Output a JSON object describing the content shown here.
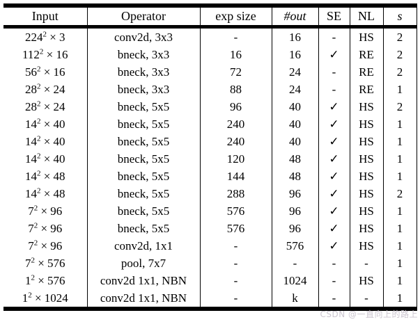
{
  "table": {
    "columns": [
      {
        "key": "input",
        "label": "Input",
        "italic": false
      },
      {
        "key": "operator",
        "label": "Operator",
        "italic": false
      },
      {
        "key": "exp-size",
        "label": "exp size",
        "italic": false
      },
      {
        "key": "out",
        "label": "#out",
        "italic": true
      },
      {
        "key": "se",
        "label": "SE",
        "italic": false
      },
      {
        "key": "nl",
        "label": "NL",
        "italic": false
      },
      {
        "key": "s",
        "label": "s",
        "italic": true
      }
    ],
    "rows": [
      [
        "224^2 × 3",
        "conv2d, 3x3",
        "-",
        "16",
        "-",
        "HS",
        "2"
      ],
      [
        "112^2 × 16",
        "bneck, 3x3",
        "16",
        "16",
        "✓",
        "RE",
        "2"
      ],
      [
        "56^2 × 16",
        "bneck, 3x3",
        "72",
        "24",
        "-",
        "RE",
        "2"
      ],
      [
        "28^2 × 24",
        "bneck, 3x3",
        "88",
        "24",
        "-",
        "RE",
        "1"
      ],
      [
        "28^2 × 24",
        "bneck, 5x5",
        "96",
        "40",
        "✓",
        "HS",
        "2"
      ],
      [
        "14^2 × 40",
        "bneck, 5x5",
        "240",
        "40",
        "✓",
        "HS",
        "1"
      ],
      [
        "14^2 × 40",
        "bneck, 5x5",
        "240",
        "40",
        "✓",
        "HS",
        "1"
      ],
      [
        "14^2 × 40",
        "bneck, 5x5",
        "120",
        "48",
        "✓",
        "HS",
        "1"
      ],
      [
        "14^2 × 48",
        "bneck, 5x5",
        "144",
        "48",
        "✓",
        "HS",
        "1"
      ],
      [
        "14^2 × 48",
        "bneck, 5x5",
        "288",
        "96",
        "✓",
        "HS",
        "2"
      ],
      [
        "7^2 × 96",
        "bneck, 5x5",
        "576",
        "96",
        "✓",
        "HS",
        "1"
      ],
      [
        "7^2 × 96",
        "bneck, 5x5",
        "576",
        "96",
        "✓",
        "HS",
        "1"
      ],
      [
        "7^2 × 96",
        "conv2d, 1x1",
        "-",
        "576",
        "✓",
        "HS",
        "1"
      ],
      [
        "7^2 × 576",
        "pool, 7x7",
        "-",
        "-",
        "-",
        "-",
        "1"
      ],
      [
        "1^2 × 576",
        "conv2d 1x1, NBN",
        "-",
        "1024",
        "-",
        "HS",
        "1"
      ],
      [
        "1^2 × 1024",
        "conv2d 1x1, NBN",
        "-",
        "k",
        "-",
        "-",
        "1"
      ]
    ]
  },
  "watermark": {
    "text": "CSDN @一直向上的路上"
  },
  "colors": {
    "text": "#000000",
    "rule": "#000000",
    "background": "#ffffff",
    "watermark": "#ccc6d0"
  }
}
